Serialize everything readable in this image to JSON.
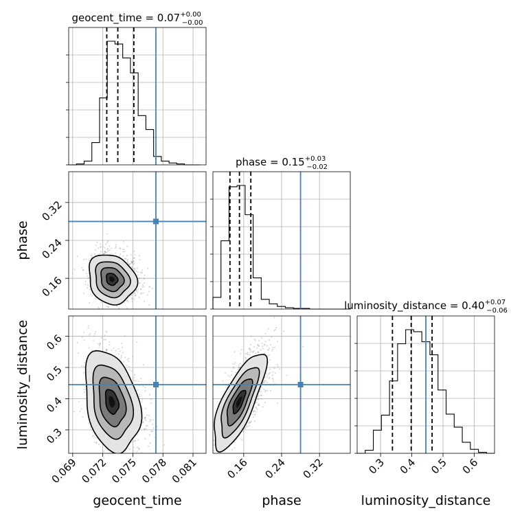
{
  "chart_data": {
    "type": "corner",
    "parameters": [
      "geocent_time",
      "phase",
      "luminosity_distance"
    ],
    "titles": {
      "geocent_time": {
        "name": "geocent_time",
        "value": "0.07",
        "upper": "+0.00",
        "lower": "−0.00"
      },
      "phase": {
        "name": "phase",
        "value": "0.15",
        "upper": "+0.03",
        "lower": "−0.02"
      },
      "luminosity_distance": {
        "name": "luminosity_distance",
        "value": "0.40",
        "upper": "+0.07",
        "lower": "−0.06"
      }
    },
    "axis_labels": {
      "geocent_time": "geocent_time",
      "phase": "phase",
      "luminosity_distance": "luminosity_distance"
    },
    "ranges": {
      "geocent_time": [
        0.0686,
        0.0823
      ],
      "phase": [
        0.095,
        0.385
      ],
      "luminosity_distance": [
        0.225,
        0.665
      ]
    },
    "ticks": {
      "geocent_time": [
        "0.069",
        "0.072",
        "0.075",
        "0.078",
        "0.081"
      ],
      "phase": [
        "0.16",
        "0.24",
        "0.32"
      ],
      "luminosity_distance": [
        "0.3",
        "0.4",
        "0.5",
        "0.6"
      ]
    },
    "truths": {
      "geocent_time": 0.0773,
      "phase": 0.28,
      "luminosity_distance": 0.445
    },
    "quantiles": {
      "geocent_time": [
        0.0724,
        0.0735,
        0.0751
      ],
      "phase": [
        0.131,
        0.151,
        0.175
      ],
      "luminosity_distance": [
        0.338,
        0.398,
        0.465
      ]
    },
    "histograms": {
      "geocent_time": {
        "edges": [
          0.0686,
          0.06937,
          0.07014,
          0.07091,
          0.07168,
          0.07245,
          0.07322,
          0.07399,
          0.07476,
          0.07553,
          0.0763,
          0.07707,
          0.07784,
          0.07861,
          0.07938,
          0.08015,
          0.08092,
          0.08169
        ],
        "counts": [
          0,
          1,
          4,
          24,
          72,
          133,
          130,
          115,
          99,
          53,
          38,
          9,
          4,
          2,
          1,
          0,
          0
        ]
      },
      "phase": {
        "edges": [
          0.095,
          0.112,
          0.129,
          0.146,
          0.163,
          0.18,
          0.197,
          0.214,
          0.231,
          0.248,
          0.265,
          0.282,
          0.299,
          0.316,
          0.333,
          0.35,
          0.367,
          0.384
        ],
        "counts": [
          18,
          105,
          188,
          190,
          145,
          48,
          15,
          8,
          4,
          2,
          1,
          1,
          0,
          0,
          0,
          0,
          0
        ]
      },
      "luminosity_distance": {
        "edges": [
          0.225,
          0.2509,
          0.2768,
          0.3027,
          0.3286,
          0.3545,
          0.3804,
          0.4063,
          0.4322,
          0.4581,
          0.484,
          0.5099,
          0.5358,
          0.5617,
          0.5876,
          0.6135,
          0.6394,
          0.6653
        ],
        "counts": [
          0,
          3,
          23,
          38,
          72,
          109,
          123,
          121,
          111,
          98,
          63,
          39,
          26,
          11,
          4,
          1,
          0
        ]
      }
    },
    "contours_2d": [
      {
        "x": "geocent_time",
        "y": "phase",
        "center": [
          0.0729,
          0.158
        ],
        "sx": 0.00095,
        "sy": 0.021,
        "rho": -0.15,
        "levels": [
          0.6,
          1.2,
          1.8,
          2.5
        ]
      },
      {
        "x": "geocent_time",
        "y": "luminosity_distance",
        "center": [
          0.0729,
          0.39
        ],
        "sx": 0.0011,
        "sy": 0.065,
        "rho": -0.3,
        "levels": [
          0.6,
          1.2,
          1.8,
          2.5
        ]
      },
      {
        "x": "phase",
        "y": "luminosity_distance",
        "center": [
          0.15,
          0.39
        ],
        "sx": 0.022,
        "sy": 0.062,
        "rho": 0.75,
        "levels": [
          0.6,
          1.2,
          1.8,
          2.5
        ]
      }
    ],
    "grid": true,
    "colors": {
      "truth": "#4682b4",
      "hist": "#000000",
      "samples": "#888888",
      "fill_dark": "#111111",
      "fill_light": "#e6e6e6"
    }
  }
}
